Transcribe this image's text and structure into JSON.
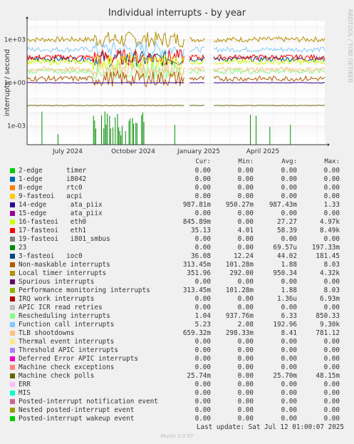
{
  "title": "Individual interrupts - by year",
  "side_label": "RRDTOOL / TOBI OETIKER",
  "last_update": "Last update: Sat Jul 12 01:00:07 2025",
  "munin_version": "Munin 2.0.57",
  "legend_columns": [
    "Cur:",
    "Min:",
    "Avg:",
    "Max:"
  ],
  "legend": [
    {
      "label": "2-edge      timer",
      "color": "#00cc00",
      "cur": "0.00",
      "min": "0.00",
      "avg": "0.00",
      "max": "0.00"
    },
    {
      "label": "1-edge      i8042",
      "color": "#0066b3",
      "cur": "0.00",
      "min": "0.00",
      "avg": "0.00",
      "max": "0.00"
    },
    {
      "label": "8-edge      rtc0",
      "color": "#ff8000",
      "cur": "0.00",
      "min": "0.00",
      "avg": "0.00",
      "max": "0.00"
    },
    {
      "label": "9-fasteoi   acpi",
      "color": "#ffcc00",
      "cur": "0.00",
      "min": "0.00",
      "avg": "0.00",
      "max": "0.00"
    },
    {
      "label": "14-edge      ata_piix",
      "color": "#330099",
      "cur": "987.81m",
      "min": "950.27m",
      "avg": "987.43m",
      "max": "1.33"
    },
    {
      "label": "15-edge      ata_piix",
      "color": "#990099",
      "cur": "0.00",
      "min": "0.00",
      "avg": "0.00",
      "max": "0.00"
    },
    {
      "label": "16-fasteoi   eth0",
      "color": "#ccff00",
      "cur": "845.89m",
      "min": "0.00",
      "avg": "27.27",
      "max": "4.97k"
    },
    {
      "label": "17-fasteoi   eth1",
      "color": "#ff0000",
      "cur": "35.13",
      "min": "4.01",
      "avg": "58.39",
      "max": "8.49k"
    },
    {
      "label": "19-fasteoi   i801_smbus",
      "color": "#808080",
      "cur": "0.00",
      "min": "0.00",
      "avg": "0.00",
      "max": "0.00"
    },
    {
      "label": "23",
      "color": "#008f00",
      "cur": "0.00",
      "min": "0.00",
      "avg": "69.57u",
      "max": "197.33m"
    },
    {
      "label": "3-fasteoi   ioc0",
      "color": "#00487d",
      "cur": "36.08",
      "min": "12.24",
      "avg": "44.02",
      "max": "181.45"
    },
    {
      "label": "Non-maskable interrupts",
      "color": "#b35a00",
      "cur": "313.45m",
      "min": "101.28m",
      "avg": "1.88",
      "max": "8.03"
    },
    {
      "label": "Local timer interrupts",
      "color": "#b38f00",
      "cur": "351.96",
      "min": "292.00",
      "avg": "950.34",
      "max": "4.32k"
    },
    {
      "label": "Spurious interrupts",
      "color": "#6b006b",
      "cur": "0.00",
      "min": "0.00",
      "avg": "0.00",
      "max": "0.00"
    },
    {
      "label": "Performance monitoring interrupts",
      "color": "#8fb300",
      "cur": "313.45m",
      "min": "101.28m",
      "avg": "1.88",
      "max": "8.03"
    },
    {
      "label": "IRQ work interrupts",
      "color": "#b30000",
      "cur": "0.00",
      "min": "0.00",
      "avg": "1.36u",
      "max": "6.93m"
    },
    {
      "label": "APIC ICR read retries",
      "color": "#bebebe",
      "cur": "0.00",
      "min": "0.00",
      "avg": "0.00",
      "max": "0.00"
    },
    {
      "label": "Rescheduling interrupts",
      "color": "#80ff80",
      "cur": "1.04",
      "min": "937.76m",
      "avg": "6.33",
      "max": "850.33"
    },
    {
      "label": "Function call interrupts",
      "color": "#80c9ff",
      "cur": "5.23",
      "min": "2.08",
      "avg": "192.96",
      "max": "9.30k"
    },
    {
      "label": "TLB shootdowns",
      "color": "#ffc080",
      "cur": "659.32m",
      "min": "298.33m",
      "avg": "8.41",
      "max": "781.12"
    },
    {
      "label": "Thermal event interrupts",
      "color": "#ffe680",
      "cur": "0.00",
      "min": "0.00",
      "avg": "0.00",
      "max": "0.00"
    },
    {
      "label": "Threshold APIC interrupts",
      "color": "#aa80ff",
      "cur": "0.00",
      "min": "0.00",
      "avg": "0.00",
      "max": "0.00"
    },
    {
      "label": "Deferred Error APIC interrupts",
      "color": "#ee00cc",
      "cur": "0.00",
      "min": "0.00",
      "avg": "0.00",
      "max": "0.00"
    },
    {
      "label": "Machine check exceptions",
      "color": "#ff8080",
      "cur": "0.00",
      "min": "0.00",
      "avg": "0.00",
      "max": "0.00"
    },
    {
      "label": "Machine check polls",
      "color": "#666600",
      "cur": "25.74m",
      "min": "0.00",
      "avg": "25.70m",
      "max": "48.15m"
    },
    {
      "label": "ERR",
      "color": "#ffbfff",
      "cur": "0.00",
      "min": "0.00",
      "avg": "0.00",
      "max": "0.00"
    },
    {
      "label": "MIS",
      "color": "#00ffcc",
      "cur": "0.00",
      "min": "0.00",
      "avg": "0.00",
      "max": "0.00"
    },
    {
      "label": "Posted-interrupt notification event",
      "color": "#cc6699",
      "cur": "0.00",
      "min": "0.00",
      "avg": "0.00",
      "max": "0.00"
    },
    {
      "label": "Nested posted-interrupt event",
      "color": "#999900",
      "cur": "0.00",
      "min": "0.00",
      "avg": "0.00",
      "max": "0.00"
    },
    {
      "label": "Posted-interrupt wakeup event",
      "color": "#00cc00",
      "cur": "0.00",
      "min": "0.00",
      "avg": "0.00",
      "max": "0.00"
    }
  ],
  "chart_data": {
    "type": "line",
    "title": "Individual interrupts - by year",
    "ylabel": "interrupts / second",
    "yscale": "log",
    "yticks": [
      "1e-03",
      "1e+00",
      "1e+03"
    ],
    "ytick_values": [
      0.001,
      1,
      1000
    ],
    "ylim": [
      5e-05,
      20000
    ],
    "xlabels": [
      "July 2024",
      "October 2024",
      "January 2025",
      "April 2025"
    ],
    "xlim": [
      "2024-05-20",
      "2025-07-12"
    ],
    "grid": true,
    "series": [
      {
        "name": "Local timer interrupts",
        "color": "#b38f00",
        "level": 1000
      },
      {
        "name": "Function call interrupts",
        "color": "#80c9ff",
        "level": 200
      },
      {
        "name": "3-fasteoi   ioc0",
        "color": "#00487d",
        "level": 44
      },
      {
        "name": "17-fasteoi   eth1",
        "color": "#ff0000",
        "level": 58
      },
      {
        "name": "16-fasteoi   eth0",
        "color": "#ccff00",
        "level": 27
      },
      {
        "name": "Rescheduling interrupts",
        "color": "#80ff80",
        "level": 6.3
      },
      {
        "name": "TLB shootdowns",
        "color": "#ffc080",
        "level": 8.4
      },
      {
        "name": "Non-maskable interrupts",
        "color": "#b35a00",
        "level": 1.9
      },
      {
        "name": "14-edge      ata_piix",
        "color": "#330099",
        "level": 0.99
      },
      {
        "name": "Machine check polls",
        "color": "#666600",
        "level": 0.026
      },
      {
        "name": "23",
        "color": "#008f00",
        "level": 7e-05
      }
    ]
  }
}
